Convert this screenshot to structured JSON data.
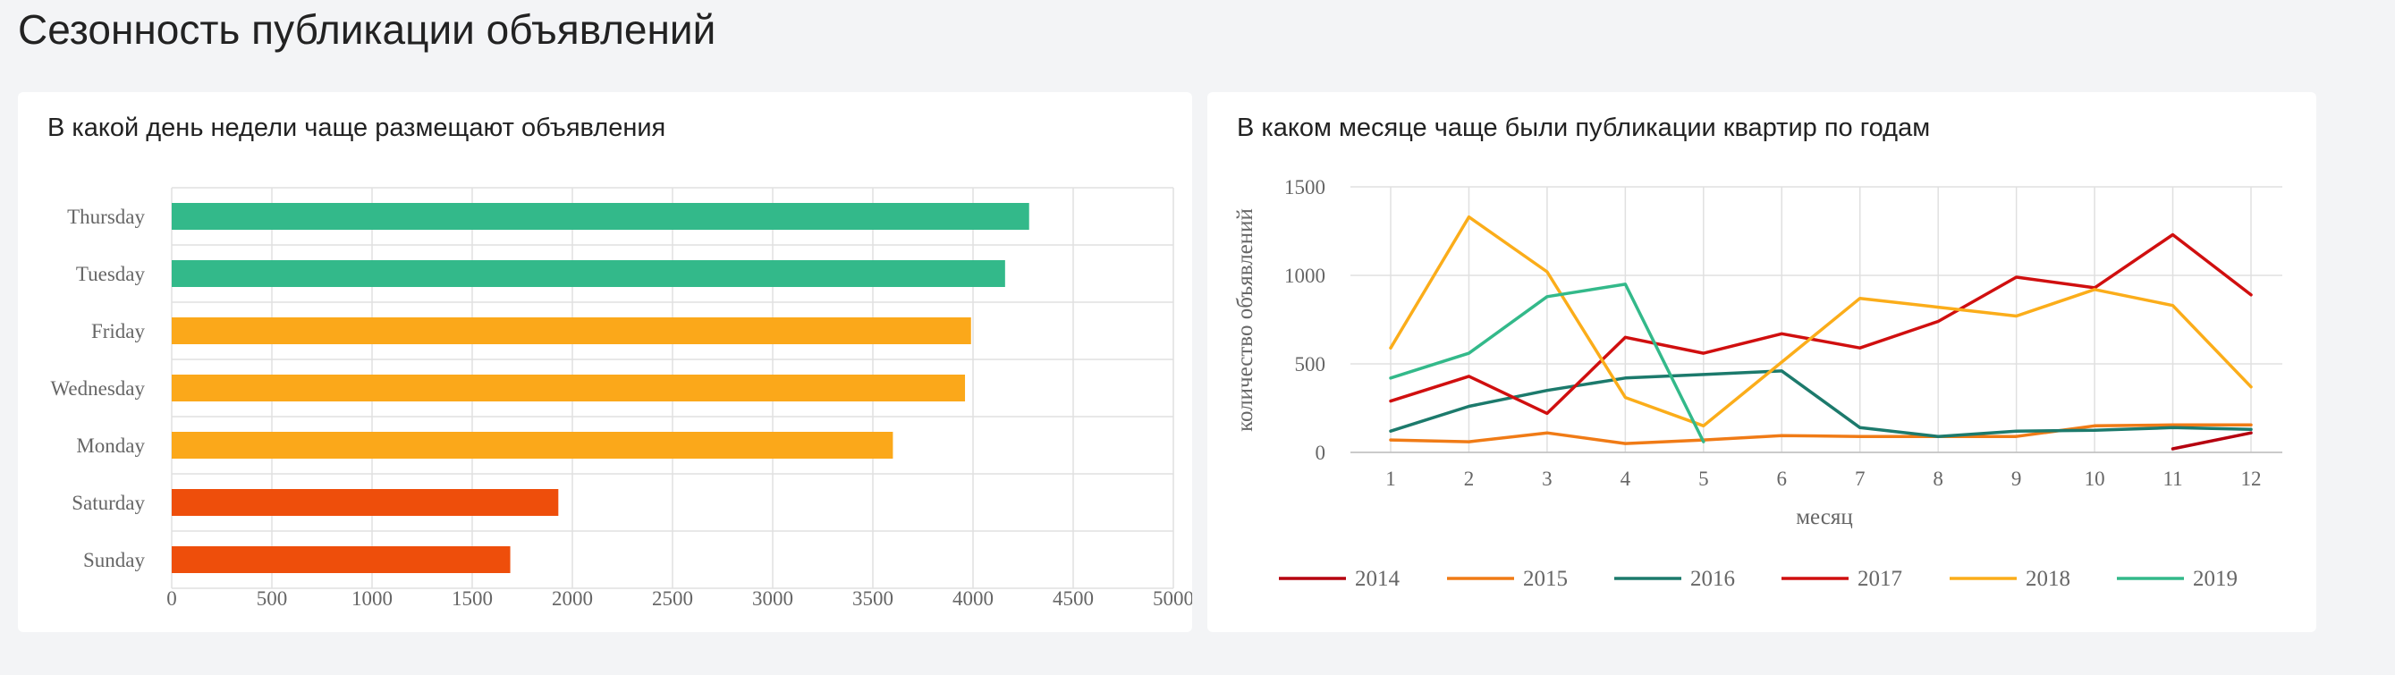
{
  "page": {
    "title": "Сезонность публикации объявлений"
  },
  "charts": {
    "weekday": {
      "title": "В какой день недели чаще размещают объявления"
    },
    "monthly": {
      "title": "В каком месяце чаще были публикации квартир по годам"
    }
  },
  "colors": {
    "top": "#33b98a",
    "middle": "#fba81a",
    "low": "#ee4e0b",
    "grid": "#e0e0e0",
    "axis_text": "#666666"
  },
  "chart_data": [
    {
      "type": "bar",
      "orientation": "horizontal",
      "title": "В какой день недели чаще размещают объявления",
      "categories": [
        "Thursday",
        "Tuesday",
        "Friday",
        "Wednesday",
        "Monday",
        "Saturday",
        "Sunday"
      ],
      "values": [
        4280,
        4160,
        3990,
        3960,
        3600,
        1930,
        1690
      ],
      "bar_colors": [
        "#33b98a",
        "#33b98a",
        "#fba81a",
        "#fba81a",
        "#fba81a",
        "#ee4e0b",
        "#ee4e0b"
      ],
      "xlim": [
        0,
        5000
      ],
      "xticks": [
        "0",
        "500",
        "1000",
        "1500",
        "2000",
        "2500",
        "3000",
        "3500",
        "4000",
        "4500",
        "5000"
      ],
      "grid": true
    },
    {
      "type": "line",
      "title": "В каком месяце чаще были публикации квартир по годам",
      "xlabel": "месяц",
      "ylabel": "количество объявлений",
      "x": [
        1,
        2,
        3,
        4,
        5,
        6,
        7,
        8,
        9,
        10,
        11,
        12
      ],
      "xticks": [
        "1",
        "2",
        "3",
        "4",
        "5",
        "6",
        "7",
        "8",
        "9",
        "10",
        "11",
        "12"
      ],
      "yticks": [
        "0",
        "500",
        "1000",
        "1500"
      ],
      "ylim": [
        0,
        1500
      ],
      "legend_position": "bottom",
      "grid": true,
      "series": [
        {
          "name": "2014",
          "color": "#b5000f",
          "values": [
            null,
            null,
            null,
            null,
            null,
            null,
            null,
            null,
            null,
            null,
            20,
            110
          ]
        },
        {
          "name": "2015",
          "color": "#f07b16",
          "values": [
            70,
            60,
            110,
            50,
            70,
            95,
            90,
            90,
            90,
            150,
            155,
            155
          ]
        },
        {
          "name": "2016",
          "color": "#1c7a6c",
          "values": [
            120,
            260,
            350,
            420,
            440,
            460,
            140,
            90,
            120,
            125,
            140,
            130
          ]
        },
        {
          "name": "2017",
          "color": "#d00f0f",
          "values": [
            290,
            430,
            220,
            650,
            560,
            670,
            590,
            740,
            990,
            930,
            1230,
            890
          ]
        },
        {
          "name": "2018",
          "color": "#fbad1a",
          "values": [
            590,
            1330,
            1020,
            310,
            150,
            510,
            870,
            820,
            770,
            920,
            830,
            370
          ]
        },
        {
          "name": "2019",
          "color": "#33b98a",
          "values": [
            420,
            560,
            880,
            950,
            60,
            null,
            null,
            null,
            null,
            null,
            null,
            null
          ]
        }
      ]
    }
  ]
}
